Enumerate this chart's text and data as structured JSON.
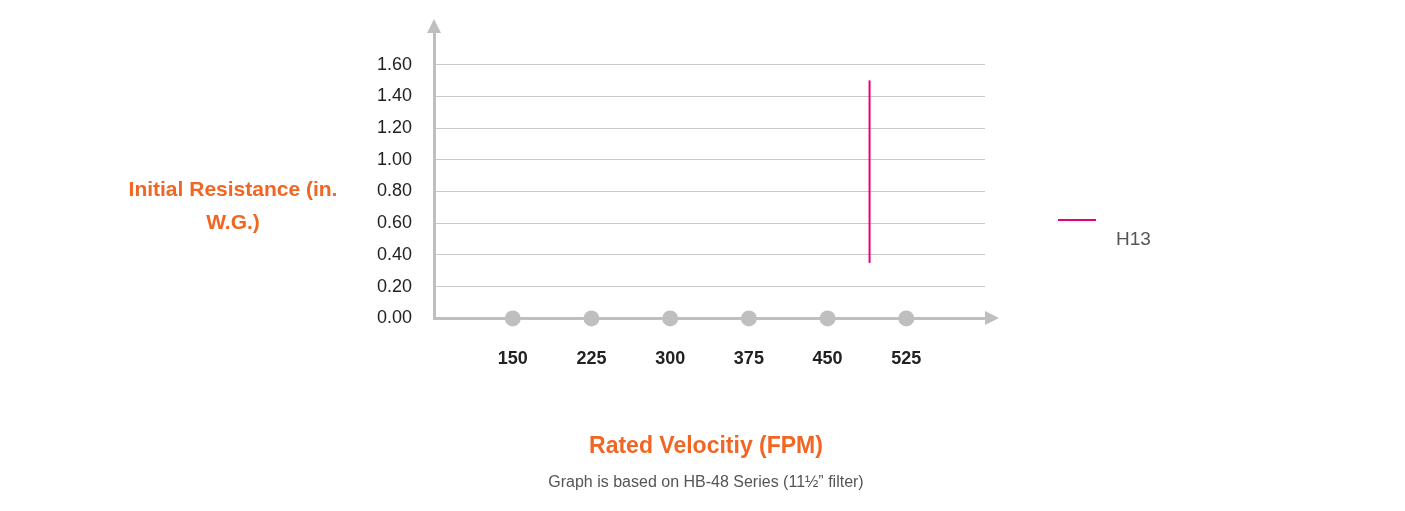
{
  "chart_data": {
    "type": "line",
    "xlabel": "Rated Velocitiy (FPM)",
    "ylabel": "Initial Resistance (in. W.G.)",
    "annotations": [
      "Graph is based on HB-48 Series (11½” filter)"
    ],
    "xlim": [
      75,
      600
    ],
    "xticks": [
      150,
      225,
      300,
      375,
      450,
      525
    ],
    "ylim": [
      0,
      1.8
    ],
    "yticks": [
      {
        "value": 0,
        "label": "0.00"
      },
      {
        "value": 0.2,
        "label": "0.20"
      },
      {
        "value": 0.4,
        "label": "0.40"
      },
      {
        "value": 0.6,
        "label": "0.60"
      },
      {
        "value": 0.8,
        "label": "0.80"
      },
      {
        "value": 1,
        "label": "1.00"
      },
      {
        "value": 1.2,
        "label": "1.20"
      },
      {
        "value": 1.4,
        "label": "1.40"
      },
      {
        "value": 1.6,
        "label": "1.60"
      }
    ],
    "grid": "y",
    "legend": "right",
    "series": [
      {
        "type": "scatter",
        "color": "#bfbfbf",
        "x": [
          150,
          225,
          300,
          375,
          450,
          525
        ],
        "values": [
          0,
          0,
          0,
          0,
          0,
          0
        ],
        "marker": "circle"
      },
      {
        "type": "line",
        "name": "H13",
        "color": "#e6007e",
        "x": [
          490,
          490
        ],
        "values": [
          0.35,
          1.5
        ],
        "marker": "none"
      }
    ]
  }
}
